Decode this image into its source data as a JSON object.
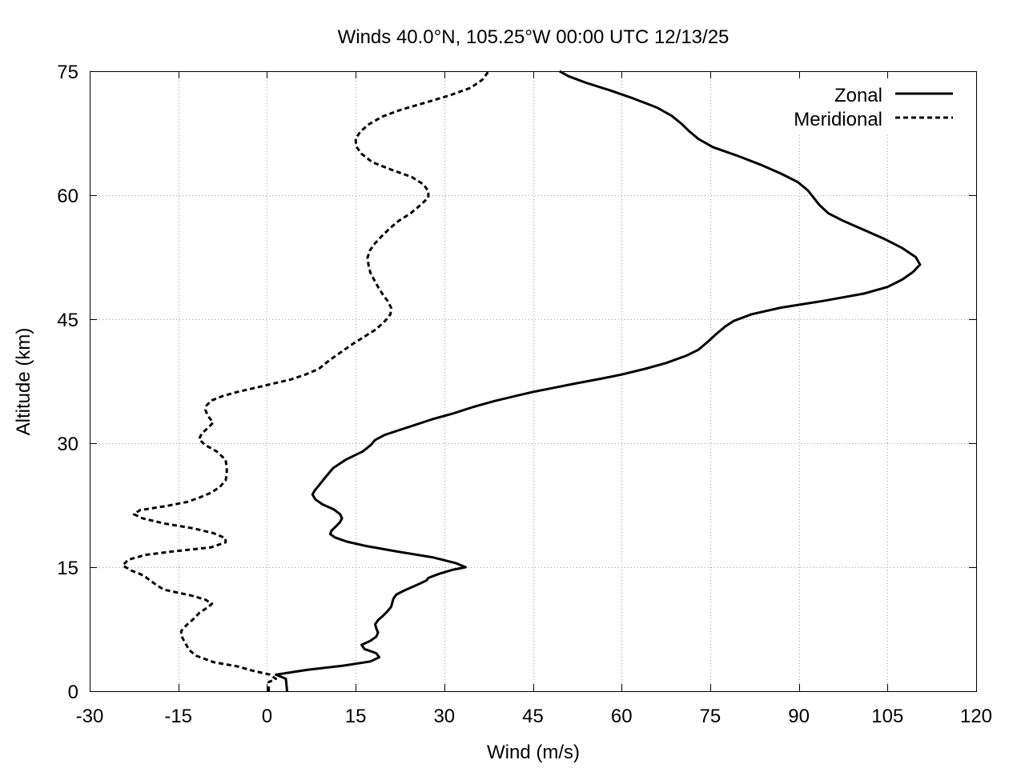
{
  "chart_data": {
    "type": "line",
    "title": "Winds 40.0°N, 105.25°W 00:00 UTC 12/13/25",
    "xlabel": "Wind (m/s)",
    "ylabel": "Altitude (km)",
    "xlim": [
      -30,
      120
    ],
    "ylim": [
      0,
      75
    ],
    "x_ticks": [
      "-30",
      "-15",
      "0",
      "15",
      "30",
      "45",
      "60",
      "75",
      "90",
      "105",
      "120"
    ],
    "y_ticks": [
      "0",
      "15",
      "30",
      "45",
      "60",
      "75"
    ],
    "grid": true,
    "legend_position": "top-right",
    "series": [
      {
        "name": "Zonal",
        "style": "solid",
        "color": "#000000",
        "points": [
          [
            3.4,
            0
          ],
          [
            3.2,
            1.5
          ],
          [
            1.5,
            2.0
          ],
          [
            7,
            2.6
          ],
          [
            13,
            3.1
          ],
          [
            17.5,
            3.6
          ],
          [
            19,
            4.1
          ],
          [
            18.5,
            4.6
          ],
          [
            16.5,
            5.1
          ],
          [
            16,
            5.6
          ],
          [
            17.5,
            6.1
          ],
          [
            18.5,
            6.6
          ],
          [
            18.8,
            7.1
          ],
          [
            18.5,
            7.6
          ],
          [
            18.3,
            8.1
          ],
          [
            18.8,
            8.6
          ],
          [
            19.6,
            9.1
          ],
          [
            20.3,
            9.6
          ],
          [
            21.0,
            10.2
          ],
          [
            21.4,
            11.2
          ],
          [
            21.9,
            11.7
          ],
          [
            23.3,
            12.2
          ],
          [
            25.8,
            13.0
          ],
          [
            27,
            13.4
          ],
          [
            27.3,
            13.7
          ],
          [
            29.1,
            14.2
          ],
          [
            31.5,
            14.7
          ],
          [
            33.6,
            15.0
          ],
          [
            31.9,
            15.5
          ],
          [
            28.0,
            16.2
          ],
          [
            22,
            16.9
          ],
          [
            16.5,
            17.6
          ],
          [
            13.5,
            18.1
          ],
          [
            11.5,
            18.6
          ],
          [
            10.7,
            19.0
          ],
          [
            10.9,
            19.4
          ],
          [
            11.6,
            19.9
          ],
          [
            12.3,
            20.4
          ],
          [
            12.7,
            20.9
          ],
          [
            12.4,
            21.4
          ],
          [
            11.3,
            22.0
          ],
          [
            9.4,
            22.6
          ],
          [
            8.2,
            23.2
          ],
          [
            7.7,
            23.8
          ],
          [
            8.1,
            24.3
          ],
          [
            8.9,
            25.0
          ],
          [
            9.8,
            25.8
          ],
          [
            11.2,
            27.0
          ],
          [
            13.3,
            28.0
          ],
          [
            16.2,
            29.0
          ],
          [
            17.6,
            29.8
          ],
          [
            18.3,
            30.4
          ],
          [
            19.9,
            31.0
          ],
          [
            22.0,
            31.5
          ],
          [
            25.0,
            32.2
          ],
          [
            28.0,
            32.9
          ],
          [
            31.5,
            33.6
          ],
          [
            35.0,
            34.4
          ],
          [
            38.5,
            35.1
          ],
          [
            42.0,
            35.7
          ],
          [
            45.0,
            36.2
          ],
          [
            48.5,
            36.7
          ],
          [
            52.0,
            37.2
          ],
          [
            56.5,
            37.8
          ],
          [
            60.0,
            38.3
          ],
          [
            64.0,
            39.0
          ],
          [
            67.5,
            39.7
          ],
          [
            71.0,
            40.6
          ],
          [
            73.0,
            41.3
          ],
          [
            74.5,
            42.2
          ],
          [
            76.0,
            43.2
          ],
          [
            77.5,
            44.1
          ],
          [
            79.0,
            44.8
          ],
          [
            82.0,
            45.6
          ],
          [
            87.0,
            46.4
          ],
          [
            94.0,
            47.2
          ],
          [
            101.0,
            48.1
          ],
          [
            105.0,
            48.9
          ],
          [
            107.5,
            49.8
          ],
          [
            109.3,
            50.7
          ],
          [
            110.5,
            51.6
          ],
          [
            109.8,
            52.5
          ],
          [
            107.5,
            53.6
          ],
          [
            104.5,
            54.7
          ],
          [
            101.0,
            55.8
          ],
          [
            97.5,
            56.9
          ],
          [
            95.0,
            57.8
          ],
          [
            93.5,
            58.8
          ],
          [
            92.5,
            59.7
          ],
          [
            91.5,
            60.6
          ],
          [
            89.8,
            61.6
          ],
          [
            87.0,
            62.6
          ],
          [
            83.5,
            63.7
          ],
          [
            79.5,
            64.8
          ],
          [
            75.5,
            65.8
          ],
          [
            73.0,
            66.8
          ],
          [
            71.5,
            67.7
          ],
          [
            70.2,
            68.6
          ],
          [
            68.5,
            69.6
          ],
          [
            66.0,
            70.6
          ],
          [
            62.0,
            71.7
          ],
          [
            58.0,
            72.7
          ],
          [
            54.0,
            73.6
          ],
          [
            51.0,
            74.4
          ],
          [
            49.5,
            75.0
          ]
        ]
      },
      {
        "name": "Meridional",
        "style": "dashed",
        "color": "#000000",
        "points": [
          [
            0.3,
            0
          ],
          [
            0.3,
            1.1
          ],
          [
            1.5,
            1.5
          ],
          [
            0.5,
            2.0
          ],
          [
            -2.5,
            2.5
          ],
          [
            -5.0,
            3.0
          ],
          [
            -9.0,
            3.5
          ],
          [
            -12.0,
            4.3
          ],
          [
            -13.2,
            5.0
          ],
          [
            -13.8,
            5.8
          ],
          [
            -14.5,
            6.7
          ],
          [
            -14.5,
            7.3
          ],
          [
            -13.6,
            8.0
          ],
          [
            -12.5,
            8.7
          ],
          [
            -11.4,
            9.5
          ],
          [
            -9.9,
            10.2
          ],
          [
            -9.3,
            10.6
          ],
          [
            -10.5,
            11.1
          ],
          [
            -13.0,
            11.6
          ],
          [
            -15.0,
            11.9
          ],
          [
            -17.5,
            12.3
          ],
          [
            -18.8,
            12.9
          ],
          [
            -19.8,
            13.4
          ],
          [
            -20.5,
            13.8
          ],
          [
            -21.5,
            14.2
          ],
          [
            -23.0,
            14.6
          ],
          [
            -24.4,
            15.2
          ],
          [
            -23.5,
            15.9
          ],
          [
            -20.5,
            16.5
          ],
          [
            -16.0,
            16.9
          ],
          [
            -9.5,
            17.4
          ],
          [
            -7.0,
            18.0
          ],
          [
            -7.0,
            18.5
          ],
          [
            -9.0,
            19.1
          ],
          [
            -12.5,
            19.7
          ],
          [
            -17.5,
            20.3
          ],
          [
            -21.0,
            20.9
          ],
          [
            -22.5,
            21.4
          ],
          [
            -21.5,
            21.9
          ],
          [
            -17.0,
            22.4
          ],
          [
            -13.5,
            22.9
          ],
          [
            -11.5,
            23.4
          ],
          [
            -9.5,
            24.0
          ],
          [
            -8.0,
            24.7
          ],
          [
            -7.0,
            25.5
          ],
          [
            -6.8,
            26.2
          ],
          [
            -6.8,
            27.0
          ],
          [
            -7.0,
            28.0
          ],
          [
            -8.5,
            29.0
          ],
          [
            -10.5,
            29.8
          ],
          [
            -11.5,
            30.5
          ],
          [
            -11.0,
            31.2
          ],
          [
            -9.9,
            31.9
          ],
          [
            -9.1,
            32.5
          ],
          [
            -10.0,
            33.3
          ],
          [
            -10.4,
            34.0
          ],
          [
            -10.2,
            34.6
          ],
          [
            -9.3,
            35.2
          ],
          [
            -7.5,
            35.7
          ],
          [
            -5.0,
            36.2
          ],
          [
            -2.0,
            36.7
          ],
          [
            1.0,
            37.2
          ],
          [
            4.0,
            37.7
          ],
          [
            6.5,
            38.3
          ],
          [
            8.8,
            39.0
          ],
          [
            10.5,
            40.0
          ],
          [
            12.5,
            41.0
          ],
          [
            14.5,
            42.0
          ],
          [
            16.5,
            42.9
          ],
          [
            18.5,
            43.8
          ],
          [
            20.0,
            44.8
          ],
          [
            20.9,
            45.6
          ],
          [
            21.0,
            46.4
          ],
          [
            20.4,
            47.2
          ],
          [
            19.6,
            48.0
          ],
          [
            18.8,
            48.9
          ],
          [
            18.1,
            49.8
          ],
          [
            17.5,
            50.6
          ],
          [
            17.2,
            51.5
          ],
          [
            17.0,
            52.4
          ],
          [
            17.4,
            53.3
          ],
          [
            18.3,
            54.2
          ],
          [
            19.5,
            55.1
          ],
          [
            20.8,
            56.0
          ],
          [
            22.3,
            56.9
          ],
          [
            24.3,
            57.8
          ],
          [
            25.8,
            58.7
          ],
          [
            27.3,
            59.7
          ],
          [
            27.3,
            60.5
          ],
          [
            26.5,
            61.3
          ],
          [
            24.5,
            62.2
          ],
          [
            21.0,
            63.1
          ],
          [
            17.8,
            64.0
          ],
          [
            16.0,
            65.0
          ],
          [
            15.1,
            65.9
          ],
          [
            15.0,
            66.8
          ],
          [
            15.8,
            67.7
          ],
          [
            17.3,
            68.6
          ],
          [
            19.5,
            69.5
          ],
          [
            22.5,
            70.3
          ],
          [
            26.8,
            71.2
          ],
          [
            31.0,
            72.1
          ],
          [
            34.5,
            73.0
          ],
          [
            36.5,
            74.0
          ],
          [
            37.5,
            75.0
          ]
        ]
      }
    ]
  }
}
